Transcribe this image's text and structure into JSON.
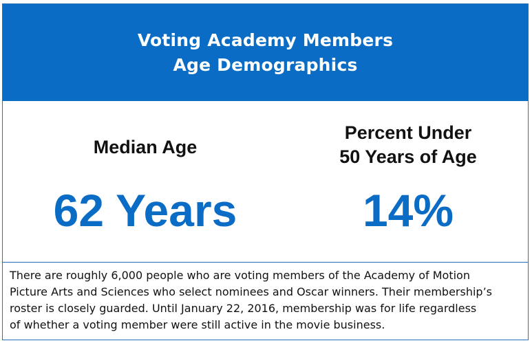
{
  "header": {
    "title_line1": "Voting Academy Members",
    "title_line2": "Age Demographics",
    "background_color": "#0a6cc4"
  },
  "stats": {
    "median_age": {
      "label": "Median Age",
      "value": "62 Years"
    },
    "percent_under_50": {
      "label": "Percent Under\n50 Years of Age",
      "value": "14%"
    },
    "value_color": "#0a6cc4"
  },
  "description": {
    "text": "There are roughly 6,000 people who are voting members of the Academy of Motion\nPicture Arts and Sciences who select nominees and Oscar winners.  Their membership’s\nroster is closely guarded.  Until January 22, 2016, membership was for life regardless\nof whether a voting member were still active in the movie business."
  }
}
